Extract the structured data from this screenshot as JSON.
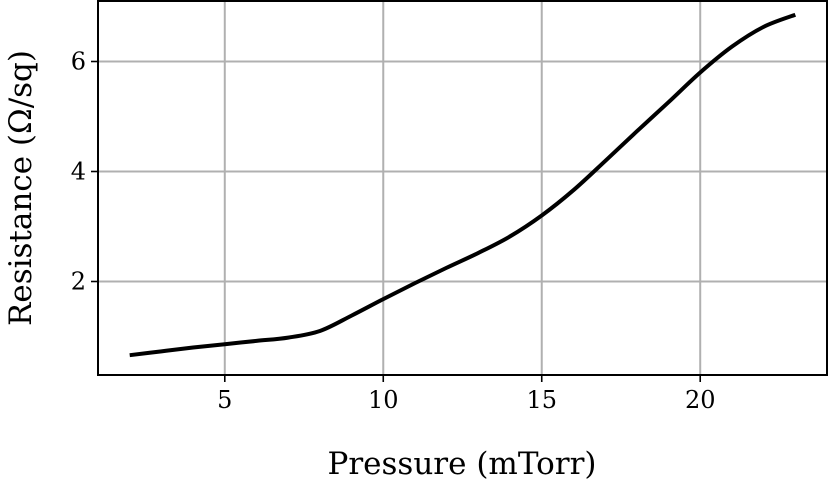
{
  "chart_data": {
    "type": "line",
    "title": "",
    "xlabel": "Pressure (mTorr)",
    "ylabel": "Resistance (Ω/sq)",
    "xlim": [
      1.0,
      24.0
    ],
    "ylim": [
      0.3,
      7.1
    ],
    "xticks": [
      5,
      10,
      15,
      20
    ],
    "xtick_labels": [
      "5",
      "10",
      "15",
      "20"
    ],
    "yticks": [
      2,
      4,
      6
    ],
    "ytick_labels": [
      "2",
      "4",
      "6"
    ],
    "grid": true,
    "legend": null,
    "series": [
      {
        "color": "#000000",
        "x": [
          2,
          3,
          4,
          5,
          6,
          7,
          8,
          9,
          10,
          11,
          12,
          13,
          14,
          15,
          16,
          17,
          18,
          19,
          20,
          21,
          22,
          23
        ],
        "y": [
          0.66,
          0.73,
          0.8,
          0.86,
          0.92,
          0.98,
          1.1,
          1.38,
          1.68,
          1.97,
          2.25,
          2.52,
          2.82,
          3.2,
          3.66,
          4.19,
          4.73,
          5.26,
          5.8,
          6.27,
          6.63,
          6.85
        ]
      }
    ]
  }
}
